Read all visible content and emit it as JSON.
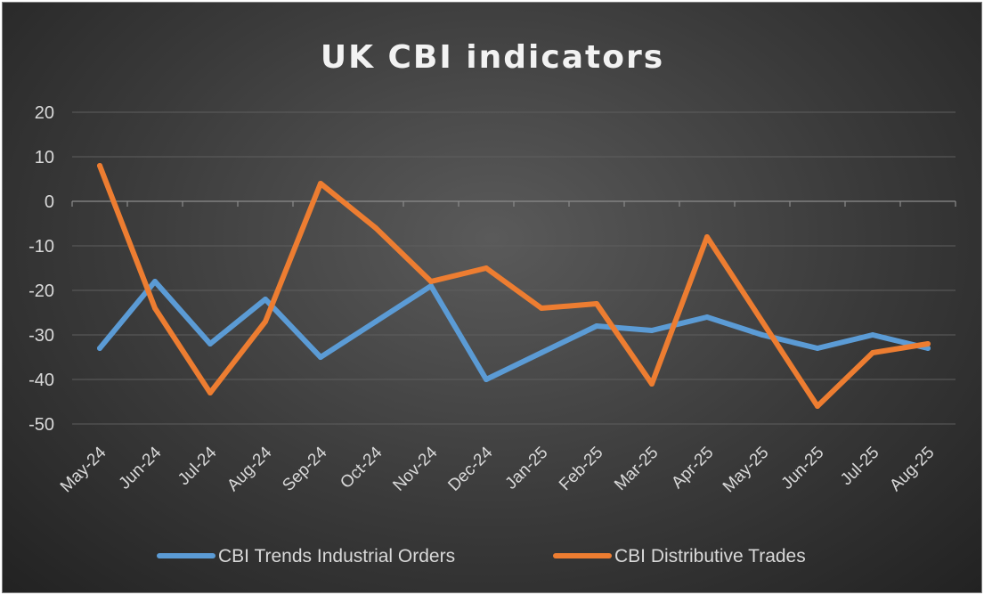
{
  "chart_data": {
    "type": "line",
    "title": "UK CBI indicators",
    "categories": [
      "May-24",
      "Jun-24",
      "Jul-24",
      "Aug-24",
      "Sep-24",
      "Oct-24",
      "Nov-24",
      "Dec-24",
      "Jan-25",
      "Feb-25",
      "Mar-25",
      "Apr-25",
      "May-25",
      "Jun-25",
      "Jul-25",
      "Aug-25"
    ],
    "ylim": [
      -50,
      20
    ],
    "yticks": [
      "20",
      "10",
      "0",
      "-10",
      "-20",
      "-30",
      "-40",
      "-50"
    ],
    "ytick_values": [
      20,
      10,
      0,
      -10,
      -20,
      -30,
      -40,
      -50
    ],
    "grid": true,
    "legend_position": "bottom",
    "series": [
      {
        "name": "CBI Trends Industrial Orders",
        "color": "#5b9bd5",
        "values": [
          -33,
          -18,
          -32,
          -22,
          -35,
          -27,
          -19,
          -40,
          -34,
          -28,
          -29,
          -26,
          -30,
          -33,
          -30,
          -33
        ]
      },
      {
        "name": "CBI Distributive Trades",
        "color": "#ed7d31",
        "values": [
          8,
          -24,
          -43,
          -27,
          4,
          -6,
          -18,
          -15,
          -24,
          -23,
          -41,
          -8,
          -27,
          -46,
          -34,
          -32
        ]
      }
    ]
  }
}
